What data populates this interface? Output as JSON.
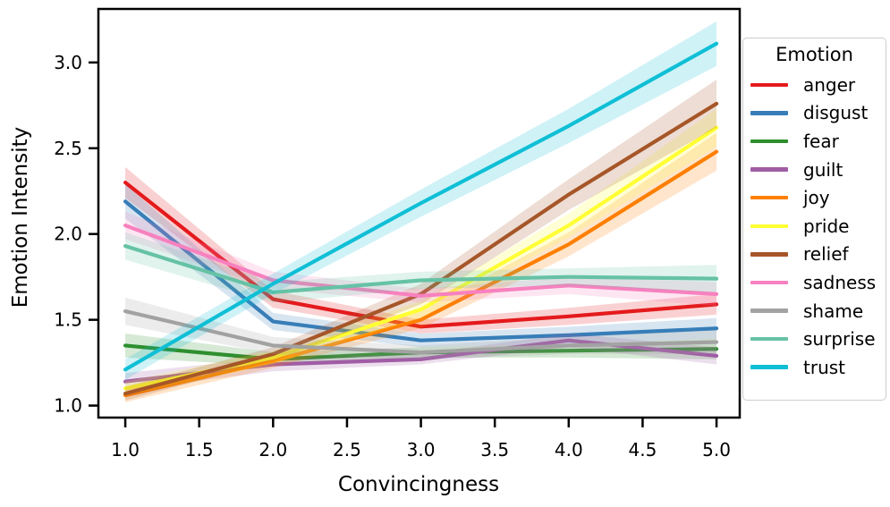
{
  "legend": {
    "title": "Emotion"
  },
  "chart_data": {
    "type": "line",
    "title": "",
    "xlabel": "Convincingness",
    "ylabel": "Emotion Intensity",
    "x": [
      1,
      2,
      3,
      4,
      5
    ],
    "xlim": [
      0.818,
      5.157
    ],
    "ylim": [
      0.93,
      3.312
    ],
    "x_tick_values": [
      1.0,
      1.5,
      2.0,
      2.5,
      3.0,
      3.5,
      4.0,
      4.5,
      5.0
    ],
    "x_tick_labels": [
      "1.0",
      "1.5",
      "2.0",
      "2.5",
      "3.0",
      "3.5",
      "4.0",
      "4.5",
      "5.0"
    ],
    "y_tick_values": [
      1.0,
      1.5,
      2.0,
      2.5,
      3.0
    ],
    "y_tick_labels": [
      "1.0",
      "1.5",
      "2.0",
      "2.5",
      "3.0"
    ],
    "grid": false,
    "legend_title": "Emotion",
    "legend_position": "outside right",
    "band_alpha": 0.2,
    "series": [
      {
        "name": "anger",
        "color": "#e41a1c",
        "values": [
          2.3,
          1.62,
          1.46,
          1.52,
          1.59
        ],
        "band": [
          0.09,
          0.05,
          0.04,
          0.05,
          0.06
        ]
      },
      {
        "name": "disgust",
        "color": "#377eb8",
        "values": [
          2.19,
          1.49,
          1.38,
          1.41,
          1.45
        ],
        "band": [
          0.1,
          0.05,
          0.04,
          0.05,
          0.06
        ]
      },
      {
        "name": "fear",
        "color": "#2e8f2e",
        "values": [
          1.35,
          1.27,
          1.31,
          1.32,
          1.33
        ],
        "band": [
          0.07,
          0.04,
          0.03,
          0.04,
          0.06
        ]
      },
      {
        "name": "guilt",
        "color": "#a05da5",
        "values": [
          1.14,
          1.24,
          1.27,
          1.38,
          1.29
        ],
        "band": [
          0.05,
          0.04,
          0.03,
          0.04,
          0.05
        ]
      },
      {
        "name": "joy",
        "color": "#ff7f00",
        "values": [
          1.06,
          1.26,
          1.5,
          1.94,
          2.48
        ],
        "band": [
          0.04,
          0.04,
          0.05,
          0.07,
          0.11
        ]
      },
      {
        "name": "pride",
        "color": "#ffff33",
        "values": [
          1.1,
          1.28,
          1.56,
          2.05,
          2.62
        ],
        "band": [
          0.04,
          0.04,
          0.05,
          0.07,
          0.11
        ]
      },
      {
        "name": "relief",
        "color": "#a65628",
        "values": [
          1.07,
          1.3,
          1.65,
          2.23,
          2.76
        ],
        "band": [
          0.04,
          0.04,
          0.06,
          0.09,
          0.14
        ]
      },
      {
        "name": "sadness",
        "color": "#f781bf",
        "values": [
          2.05,
          1.73,
          1.64,
          1.7,
          1.65
        ],
        "band": [
          0.08,
          0.05,
          0.04,
          0.05,
          0.07
        ]
      },
      {
        "name": "shame",
        "color": "#a2a2a2",
        "values": [
          1.55,
          1.35,
          1.31,
          1.35,
          1.37
        ],
        "band": [
          0.08,
          0.05,
          0.04,
          0.05,
          0.07
        ]
      },
      {
        "name": "surprise",
        "color": "#66c2a5",
        "values": [
          1.93,
          1.66,
          1.73,
          1.75,
          1.74
        ],
        "band": [
          0.08,
          0.06,
          0.05,
          0.05,
          0.08
        ]
      },
      {
        "name": "trust",
        "color": "#0fbfd5",
        "values": [
          1.21,
          1.71,
          2.18,
          2.63,
          3.11
        ],
        "band": [
          0.06,
          0.06,
          0.08,
          0.1,
          0.13
        ]
      }
    ]
  }
}
